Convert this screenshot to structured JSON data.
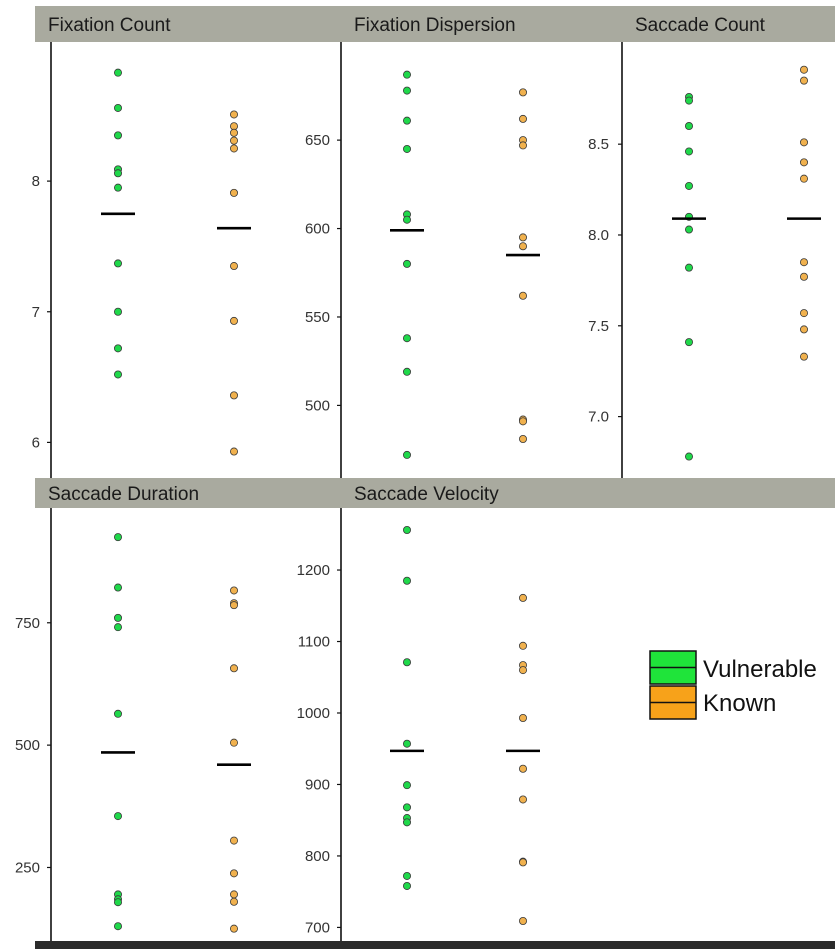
{
  "colors": {
    "strip": "#a9aa9f",
    "axis": "#111111",
    "vulnerable": "#1fd84a",
    "known": "#f0b14e",
    "vulnerable_legend": "#1fe43a",
    "known_legend": "#f7a21a",
    "median": "#000000",
    "bottom_bar": "#2b2b2b"
  },
  "legend": {
    "items": [
      {
        "label": "Vulnerable",
        "color_key": "vulnerable_legend"
      },
      {
        "label": "Known",
        "color_key": "known_legend"
      }
    ]
  },
  "chart_data": [
    {
      "type": "scatter",
      "title": "Fixation Count",
      "ylim": [
        5.85,
        8.95
      ],
      "yticks": [
        6,
        7,
        8
      ],
      "ytick_labels": [
        "6",
        "7",
        "8"
      ],
      "series": [
        {
          "name": "Vulnerable",
          "values": [
            8.83,
            8.56,
            8.35,
            8.09,
            8.06,
            7.95,
            7.37,
            7.0,
            6.72,
            6.52
          ],
          "median": 7.75
        },
        {
          "name": "Known",
          "values": [
            8.51,
            8.42,
            8.37,
            8.31,
            8.25,
            7.91,
            7.35,
            6.93,
            6.36,
            5.93
          ],
          "median": 7.64
        }
      ]
    },
    {
      "type": "scatter",
      "title": "Fixation Dispersion",
      "ylim": [
        468,
        697
      ],
      "yticks": [
        500,
        550,
        600,
        650
      ],
      "ytick_labels": [
        "500",
        "550",
        "600",
        "650"
      ],
      "series": [
        {
          "name": "Vulnerable",
          "values": [
            687,
            678,
            661,
            645,
            608,
            605,
            580,
            538,
            519,
            472
          ],
          "median": 599
        },
        {
          "name": "Known",
          "values": [
            677,
            662,
            650,
            647,
            595,
            590,
            562,
            492,
            491,
            481
          ],
          "median": 585
        }
      ]
    },
    {
      "type": "scatter",
      "title": "Saccade Count",
      "ylim": [
        6.75,
        8.98
      ],
      "yticks": [
        7.0,
        7.5,
        8.0,
        8.5
      ],
      "ytick_labels": [
        "7.0",
        "7.5",
        "8.0",
        "8.5"
      ],
      "series": [
        {
          "name": "Vulnerable",
          "values": [
            8.76,
            8.74,
            8.6,
            8.46,
            8.27,
            8.1,
            8.03,
            7.82,
            7.41,
            6.78
          ],
          "median": 8.09
        },
        {
          "name": "Known",
          "values": [
            8.91,
            8.85,
            8.51,
            8.4,
            8.31,
            7.85,
            7.77,
            7.57,
            7.48,
            7.33
          ],
          "median": 8.09
        }
      ]
    },
    {
      "type": "scatter",
      "title": "Saccade Duration",
      "ylim": [
        110,
        960
      ],
      "yticks": [
        250,
        500,
        750
      ],
      "ytick_labels": [
        "250",
        "500",
        "750"
      ],
      "series": [
        {
          "name": "Vulnerable",
          "values": [
            925,
            822,
            760,
            741,
            564,
            355,
            195,
            185,
            179,
            130
          ],
          "median": 485
        },
        {
          "name": "Known",
          "values": [
            816,
            790,
            786,
            657,
            505,
            305,
            238,
            195,
            180,
            125
          ],
          "median": 460
        }
      ]
    },
    {
      "type": "scatter",
      "title": "Saccade Velocity",
      "ylim": [
        688,
        1270
      ],
      "yticks": [
        700,
        800,
        900,
        1000,
        1100,
        1200
      ],
      "ytick_labels": [
        "700",
        "800",
        "900",
        "1000",
        "1100",
        "1200"
      ],
      "series": [
        {
          "name": "Vulnerable",
          "values": [
            1256,
            1185,
            1071,
            957,
            899,
            868,
            853,
            847,
            772,
            758
          ],
          "median": 947
        },
        {
          "name": "Known",
          "values": [
            1161,
            1094,
            1067,
            1060,
            993,
            922,
            879,
            792,
            791,
            709
          ],
          "median": 947
        }
      ]
    }
  ]
}
